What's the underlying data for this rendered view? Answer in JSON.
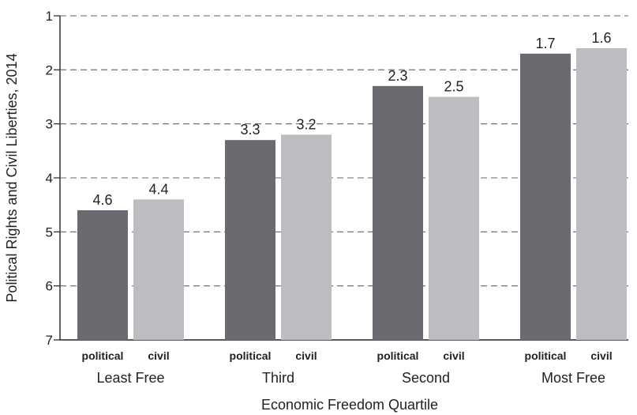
{
  "chart_data": {
    "type": "bar",
    "categories": [
      "Least Free",
      "Third",
      "Second",
      "Most Free"
    ],
    "series": [
      {
        "name": "political",
        "values": [
          4.6,
          3.3,
          2.3,
          1.7
        ],
        "color": "#6a6b70"
      },
      {
        "name": "civil",
        "values": [
          4.4,
          3.2,
          2.5,
          1.6
        ],
        "color": "#bcbdc1"
      }
    ],
    "xlabel": "Economic Freedom Quartile",
    "ylabel": "Political Rights and Civil Liberties, 2014",
    "ylim": [
      1,
      7
    ],
    "y_inverted": true,
    "y_ticks": [
      "1",
      "2",
      "3",
      "4",
      "5",
      "6",
      "7"
    ],
    "grid": "horizontal dashed",
    "legend": "series labels under bars"
  }
}
